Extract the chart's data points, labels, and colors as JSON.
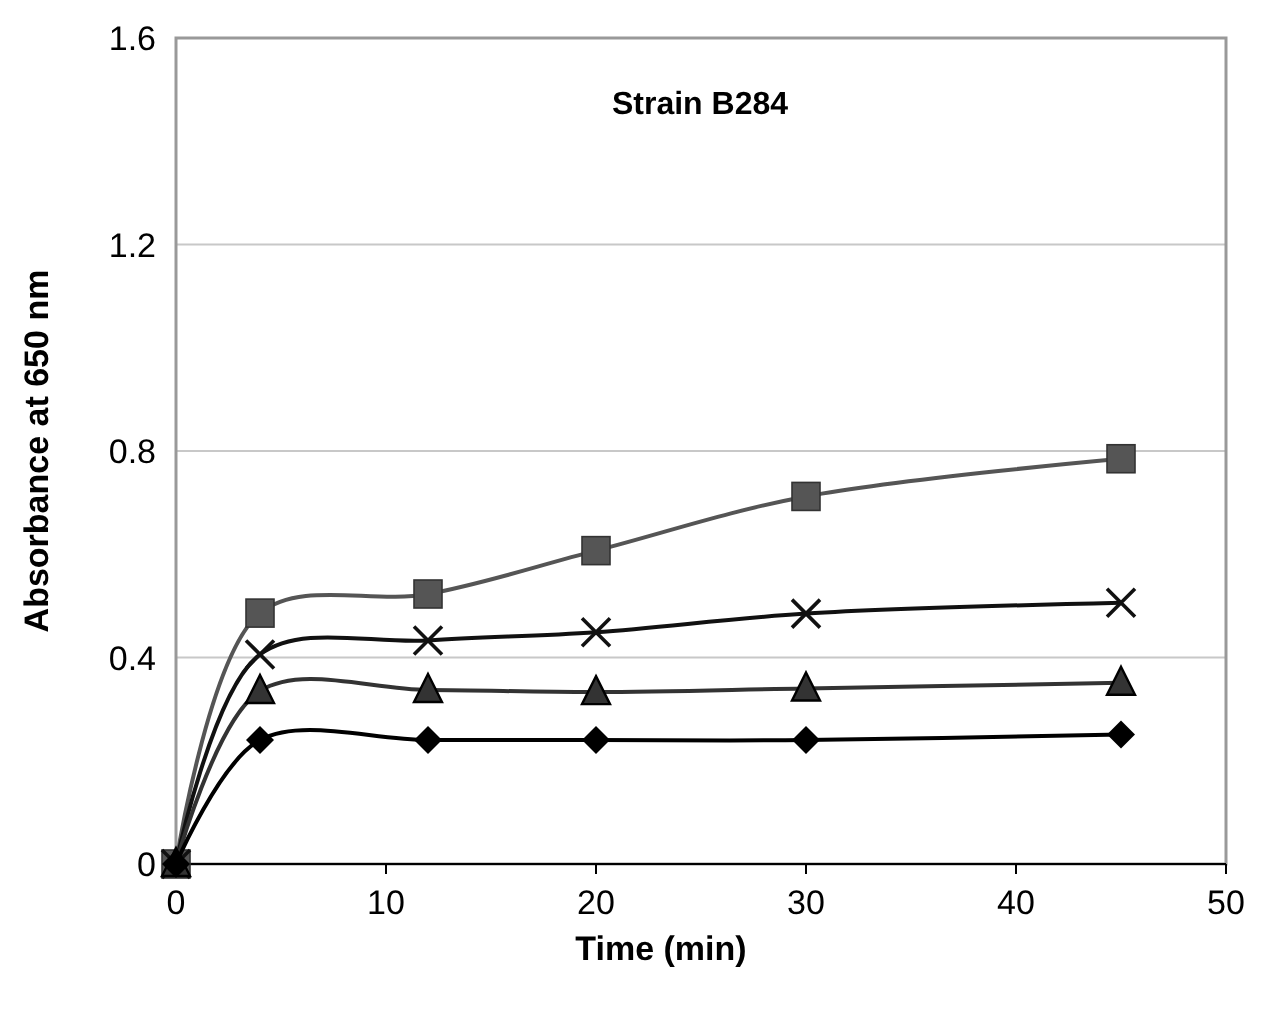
{
  "chart_data": {
    "type": "line",
    "title": "Strain B284",
    "xlabel": "Time (min)",
    "ylabel": "Absorbance at 650 nm",
    "xlim": [
      0,
      50
    ],
    "xticks": [
      0,
      10,
      20,
      30,
      40,
      50
    ],
    "ylim": [
      0,
      1.6
    ],
    "yticks": [
      0,
      0.4,
      0.8,
      1.2,
      1.6
    ],
    "grid": "y",
    "x": [
      0,
      4,
      12,
      20,
      30,
      45
    ],
    "series": [
      {
        "color": "#555555",
        "marker": "square",
        "values": [
          0,
          0.486,
          0.523,
          0.607,
          0.712,
          0.785
        ]
      },
      {
        "color": "#111111",
        "marker": "cross",
        "values": [
          0,
          0.406,
          0.433,
          0.449,
          0.485,
          0.506
        ]
      },
      {
        "color": "#333333",
        "marker": "triangle",
        "values": [
          0,
          0.335,
          0.337,
          0.333,
          0.34,
          0.351
        ]
      },
      {
        "color": "#000000",
        "marker": "diamond",
        "values": [
          0,
          0.24,
          0.24,
          0.24,
          0.24,
          0.251
        ]
      }
    ]
  }
}
